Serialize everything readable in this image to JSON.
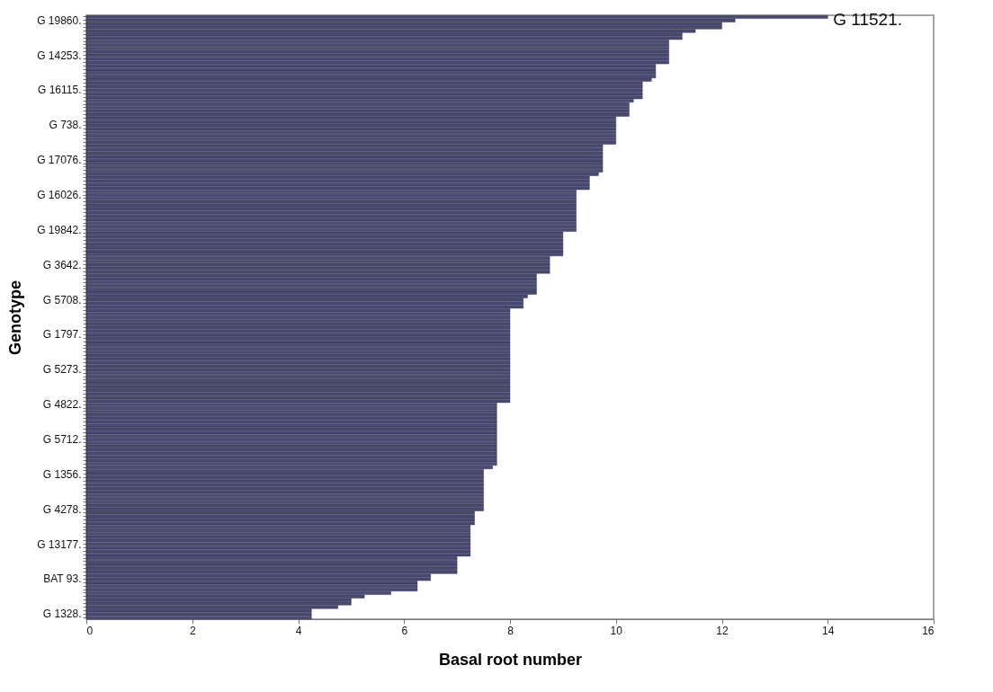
{
  "chart_data": {
    "type": "bar",
    "orientation": "horizontal",
    "xlabel": "Basal root number",
    "ylabel": "Genotype",
    "color": "#4a4b74",
    "xlim": [
      0,
      16
    ],
    "xticks": [
      0,
      2,
      4,
      6,
      8,
      10,
      12,
      14,
      16
    ],
    "grid": false,
    "annotations": [
      {
        "text": "G 11521.",
        "x": 14
      }
    ],
    "categories": [
      null,
      "G 19860.",
      null,
      null,
      null,
      null,
      null,
      null,
      null,
      null,
      null,
      "G 14253.",
      null,
      null,
      null,
      null,
      null,
      null,
      null,
      null,
      null,
      "G 16115.",
      null,
      null,
      null,
      null,
      null,
      null,
      null,
      null,
      null,
      "G  738.",
      null,
      null,
      null,
      null,
      null,
      null,
      null,
      null,
      null,
      "G 17076.",
      null,
      null,
      null,
      null,
      null,
      null,
      null,
      null,
      null,
      "G 16026.",
      null,
      null,
      null,
      null,
      null,
      null,
      null,
      null,
      null,
      "G 19842.",
      null,
      null,
      null,
      null,
      null,
      null,
      null,
      null,
      null,
      "G  3642.",
      null,
      null,
      null,
      null,
      null,
      null,
      null,
      null,
      null,
      "G  5708.",
      null,
      null,
      null,
      null,
      null,
      null,
      null,
      null,
      null,
      "G  1797.",
      null,
      null,
      null,
      null,
      null,
      null,
      null,
      null,
      null,
      "G  5273.",
      null,
      null,
      null,
      null,
      null,
      null,
      null,
      null,
      null,
      "G  4822.",
      null,
      null,
      null,
      null,
      null,
      null,
      null,
      null,
      null,
      "G  5712.",
      null,
      null,
      null,
      null,
      null,
      null,
      null,
      null,
      null,
      "G  1356.",
      null,
      null,
      null,
      null,
      null,
      null,
      null,
      null,
      null,
      "G  4278.",
      null,
      null,
      null,
      null,
      null,
      null,
      null,
      null,
      null,
      "G 13177.",
      null,
      null,
      null,
      null,
      null,
      null,
      null,
      null,
      null,
      "BAT  93.",
      null,
      null,
      null,
      null,
      null,
      null,
      null,
      null,
      null,
      "G  1328.",
      null
    ],
    "values": [
      14,
      12.25,
      12,
      12,
      11.5,
      11.25,
      11.25,
      11,
      11,
      11,
      11,
      11,
      11,
      11,
      10.75,
      10.75,
      10.75,
      10.75,
      10.67,
      10.5,
      10.5,
      10.5,
      10.5,
      10.5,
      10.33,
      10.25,
      10.25,
      10.25,
      10.25,
      10,
      10,
      10,
      10,
      10,
      10,
      10,
      10,
      9.75,
      9.75,
      9.75,
      9.75,
      9.75,
      9.75,
      9.75,
      9.75,
      9.67,
      9.5,
      9.5,
      9.5,
      9.5,
      9.25,
      9.25,
      9.25,
      9.25,
      9.25,
      9.25,
      9.25,
      9.25,
      9.25,
      9.25,
      9.25,
      9.25,
      9,
      9,
      9,
      9,
      9,
      9,
      9,
      8.75,
      8.75,
      8.75,
      8.75,
      8.75,
      8.5,
      8.5,
      8.5,
      8.5,
      8.5,
      8.5,
      8.33,
      8.25,
      8.25,
      8.25,
      8,
      8,
      8,
      8,
      8,
      8,
      8,
      8,
      8,
      8,
      8,
      8,
      8,
      8,
      8,
      8,
      8,
      8,
      8,
      8,
      8,
      8,
      8,
      8,
      8,
      8,
      8,
      7.75,
      7.75,
      7.75,
      7.75,
      7.75,
      7.75,
      7.75,
      7.75,
      7.75,
      7.75,
      7.75,
      7.75,
      7.75,
      7.75,
      7.75,
      7.75,
      7.75,
      7.75,
      7.67,
      7.5,
      7.5,
      7.5,
      7.5,
      7.5,
      7.5,
      7.5,
      7.5,
      7.5,
      7.5,
      7.5,
      7.5,
      7.33,
      7.33,
      7.33,
      7.33,
      7.25,
      7.25,
      7.25,
      7.25,
      7.25,
      7.25,
      7.25,
      7.25,
      7.25,
      7,
      7,
      7,
      7,
      7,
      6.5,
      6.5,
      6.25,
      6.25,
      6.25,
      5.75,
      5.25,
      5,
      5,
      4.75,
      4.25,
      4.25,
      4.25
    ]
  }
}
